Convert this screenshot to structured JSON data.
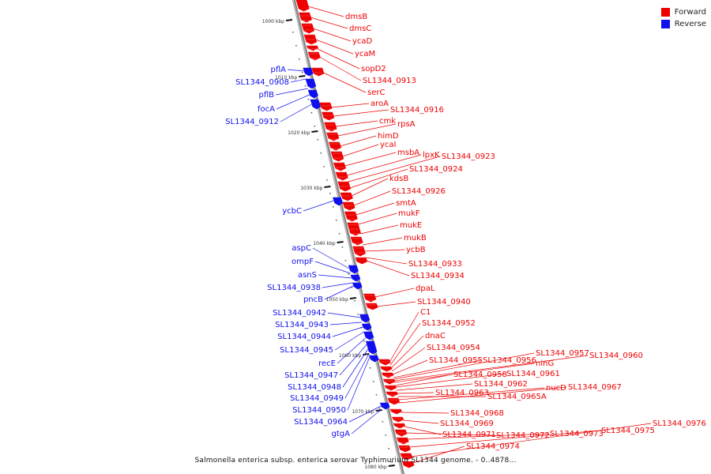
{
  "caption": "Salmonella enterica subsp. enterica serovar Typhimurium SL1344 genome. - 0..4878...",
  "legend": [
    {
      "label": "Forward",
      "color": "#ee0000"
    },
    {
      "label": "Reverse",
      "color": "#1010ee"
    }
  ],
  "colors": {
    "forward": "#ee0000",
    "reverse": "#1010ee",
    "backbone": "#888888"
  },
  "ticks": [
    "1000 kbp",
    "1010 kbp",
    "1020 kbp",
    "1030 kbp",
    "1040 kbp",
    "1050 kbp",
    "1060 kbp",
    "1070 kbp",
    "1080 kbp"
  ],
  "forward_genes": [
    "dmsB",
    "dmsC",
    "ycaD",
    "ycaM",
    "sopD2",
    "SL1344_0913",
    "serC",
    "aroA",
    "SL1344_0916",
    "cmk",
    "rpsA",
    "himD",
    "ycaI",
    "msbA",
    "lpxK",
    "SL1344_0923",
    "SL1344_0924",
    "kdsB",
    "SL1344_0926",
    "smtA",
    "mukF",
    "mukE",
    "mukB",
    "ycbB",
    "SL1344_0933",
    "SL1344_0934",
    "dpaL",
    "SL1344_0940",
    "C1",
    "SL1344_0952",
    "dnaC",
    "SL1344_0954",
    "SL1344_0955",
    "SL1344_0956",
    "SL1344_0957",
    "SL1344_0960",
    "ninG",
    "SL1344_0958",
    "SL1344_0961",
    "SL1344_0962",
    "SL1344_0963",
    "SL1344_0965A",
    "nucD",
    "SL1344_0967",
    "SL1344_0968",
    "SL1344_0969",
    "SL1344_0971",
    "SL1344_0972",
    "SL1344_0973",
    "SL1344_0975",
    "SL1344_0976",
    "SL1344_0974"
  ],
  "reverse_genes": [
    "pflA",
    "SL1344_0908",
    "pflB",
    "focA",
    "SL1344_0912",
    "ycbC",
    "aspC",
    "ompF",
    "asnS",
    "SL1344_0938",
    "pncB",
    "SL1344_0942",
    "SL1344_0943",
    "SL1344_0944",
    "SL1344_0945",
    "recE",
    "SL1344_0947",
    "SL1344_0948",
    "SL1344_0949",
    "SL1344_0950",
    "SL1344_0964",
    "gtgA"
  ]
}
